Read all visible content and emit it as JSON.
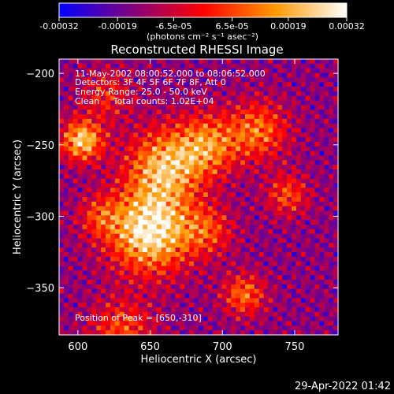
{
  "chart_data": {
    "type": "heatmap",
    "title": "Reconstructed RHESSI Image",
    "xlabel": "Heliocentric X (arcsec)",
    "ylabel": "Heliocentric Y (arcsec)",
    "xlim": [
      587,
      780
    ],
    "ylim": [
      -383,
      -190
    ],
    "xticks": [
      600,
      650,
      700,
      750
    ],
    "yticks": [
      -200,
      -250,
      -300,
      -350
    ],
    "colorbar": {
      "range": [
        -0.00032,
        0.00032
      ],
      "tick_values": [
        -0.00032,
        -0.00019,
        -6.5e-05,
        6.5e-05,
        0.00019,
        0.00032
      ],
      "tick_labels": [
        "-0.00032",
        "-0.00019",
        "-6.5e-05",
        "6.5e-05",
        "0.00019",
        "0.00032"
      ],
      "label": "(photons cm⁻² s⁻¹ asec⁻²)",
      "colors": [
        "#0000ff",
        "#800080",
        "#ff0000",
        "#ff9900",
        "#ffffff"
      ]
    },
    "annotations": [
      "11-May-2002 08:00:52.000 to 08:06:52.000",
      "Detectors: 3F 4F 5F 6F 7F 8F, Att 0",
      "Energy Range: 25.0 - 50.0 keV",
      "Clean     Total counts: 1.02E+04",
      "Position of Peak = [650,-310]"
    ],
    "peak": {
      "x": 650,
      "y": -310
    },
    "sources": [
      {
        "x": 650,
        "y": -310,
        "sigma": 20,
        "amp": 1.0
      },
      {
        "x": 603,
        "y": -247,
        "sigma": 10,
        "amp": 0.85
      },
      {
        "x": 660,
        "y": -265,
        "sigma": 18,
        "amp": 0.75
      },
      {
        "x": 690,
        "y": -250,
        "sigma": 15,
        "amp": 0.6
      },
      {
        "x": 725,
        "y": -240,
        "sigma": 14,
        "amp": 0.55
      },
      {
        "x": 745,
        "y": -285,
        "sigma": 10,
        "amp": 0.45
      },
      {
        "x": 715,
        "y": -355,
        "sigma": 10,
        "amp": 0.55
      },
      {
        "x": 630,
        "y": -380,
        "sigma": 15,
        "amp": 0.45
      },
      {
        "x": 615,
        "y": -300,
        "sigma": 10,
        "amp": 0.35
      },
      {
        "x": 690,
        "y": -310,
        "sigma": 12,
        "amp": 0.4
      },
      {
        "x": 620,
        "y": -215,
        "sigma": 12,
        "amp": 0.35
      }
    ]
  },
  "footer": {
    "timestamp": "29-Apr-2022 01:42"
  }
}
